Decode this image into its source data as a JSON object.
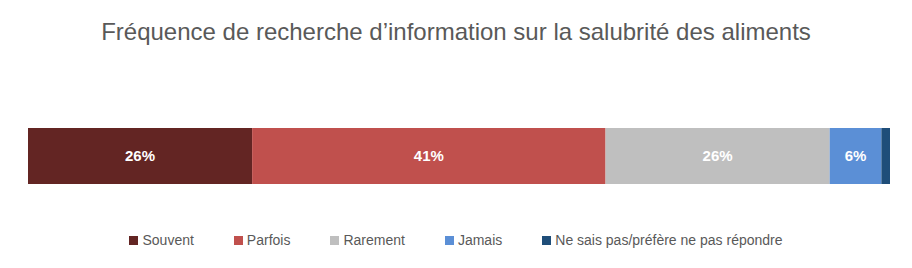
{
  "chart_data": {
    "type": "bar",
    "title": "Fréquence de recherche d’information sur la salubrité des aliments",
    "orientation": "horizontal",
    "stacked": true,
    "data_labels": true,
    "tick_labels": false,
    "legend": "bottom",
    "categories": [
      null
    ],
    "xlim": [
      0,
      100
    ],
    "series": [
      {
        "name": "Souvent",
        "color": "#632523",
        "values": [
          26
        ],
        "value_labels": [
          "26%"
        ]
      },
      {
        "name": "Parfois",
        "color": "#C0504D",
        "values": [
          41
        ],
        "value_labels": [
          "41%"
        ]
      },
      {
        "name": "Rarement",
        "color": "#BFBFBF",
        "values": [
          26
        ],
        "value_labels": [
          "26%"
        ]
      },
      {
        "name": "Jamais",
        "color": "#5B8FD6",
        "values": [
          6
        ],
        "value_labels": [
          "6%"
        ]
      },
      {
        "name": "Ne sais pas/préfère ne pas répondre",
        "color": "#1F4E79",
        "values": [
          1
        ],
        "value_labels": [
          null
        ]
      }
    ]
  }
}
